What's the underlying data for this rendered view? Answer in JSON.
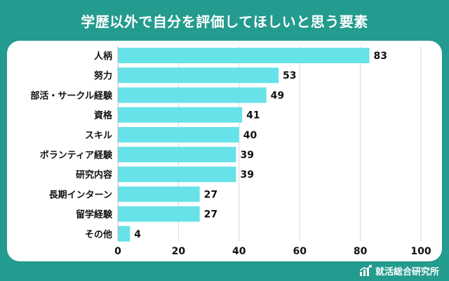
{
  "title": "学歴以外で自分を評価してほしいと思う要素",
  "brand": {
    "name": "就活総合研究所",
    "icon": "bar-chart-logo-icon"
  },
  "colors": {
    "background": "#239b8e",
    "bar": "#66e2e8",
    "grid": "#d6d6d6",
    "text": "#111111"
  },
  "chart_data": {
    "type": "bar",
    "orientation": "horizontal",
    "categories": [
      "人柄",
      "努力",
      "部活・サークル経験",
      "資格",
      "スキル",
      "ボランティア経験",
      "研究内容",
      "長期インターン",
      "留学経験",
      "その他"
    ],
    "values": [
      83,
      53,
      49,
      41,
      40,
      39,
      39,
      27,
      27,
      4
    ],
    "xlim": [
      0,
      100
    ],
    "xticks": [
      0,
      20,
      40,
      60,
      80,
      100
    ],
    "grid": true,
    "data_labels": true
  }
}
